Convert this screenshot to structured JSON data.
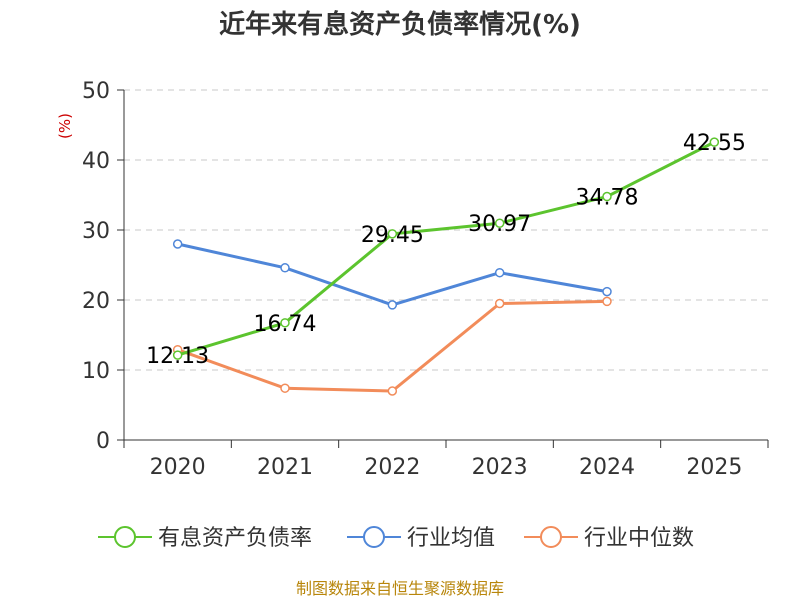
{
  "chart_data": {
    "type": "line",
    "title": "近年来有息资产负债率情况(%)",
    "ylabel": "(%)",
    "xlabel": "",
    "categories": [
      "2020",
      "2021",
      "2022",
      "2023",
      "2024",
      "2025"
    ],
    "ylim": [
      0,
      50
    ],
    "yticks": [
      0,
      10,
      20,
      30,
      40,
      50
    ],
    "grid": true,
    "series": [
      {
        "name": "有息资产负债率",
        "color": "#5cc42e",
        "values": [
          12.13,
          16.74,
          29.45,
          30.97,
          34.78,
          42.55
        ],
        "show_labels": true
      },
      {
        "name": "行业均值",
        "color": "#4f86d8",
        "values": [
          28.0,
          24.6,
          19.3,
          23.9,
          21.2,
          null
        ],
        "show_labels": false
      },
      {
        "name": "行业中位数",
        "color": "#f28c5a",
        "values": [
          12.9,
          7.4,
          7.0,
          19.5,
          19.8,
          null
        ],
        "show_labels": false
      }
    ],
    "legend_position": "bottom",
    "source": "制图数据来自恒生聚源数据库"
  }
}
